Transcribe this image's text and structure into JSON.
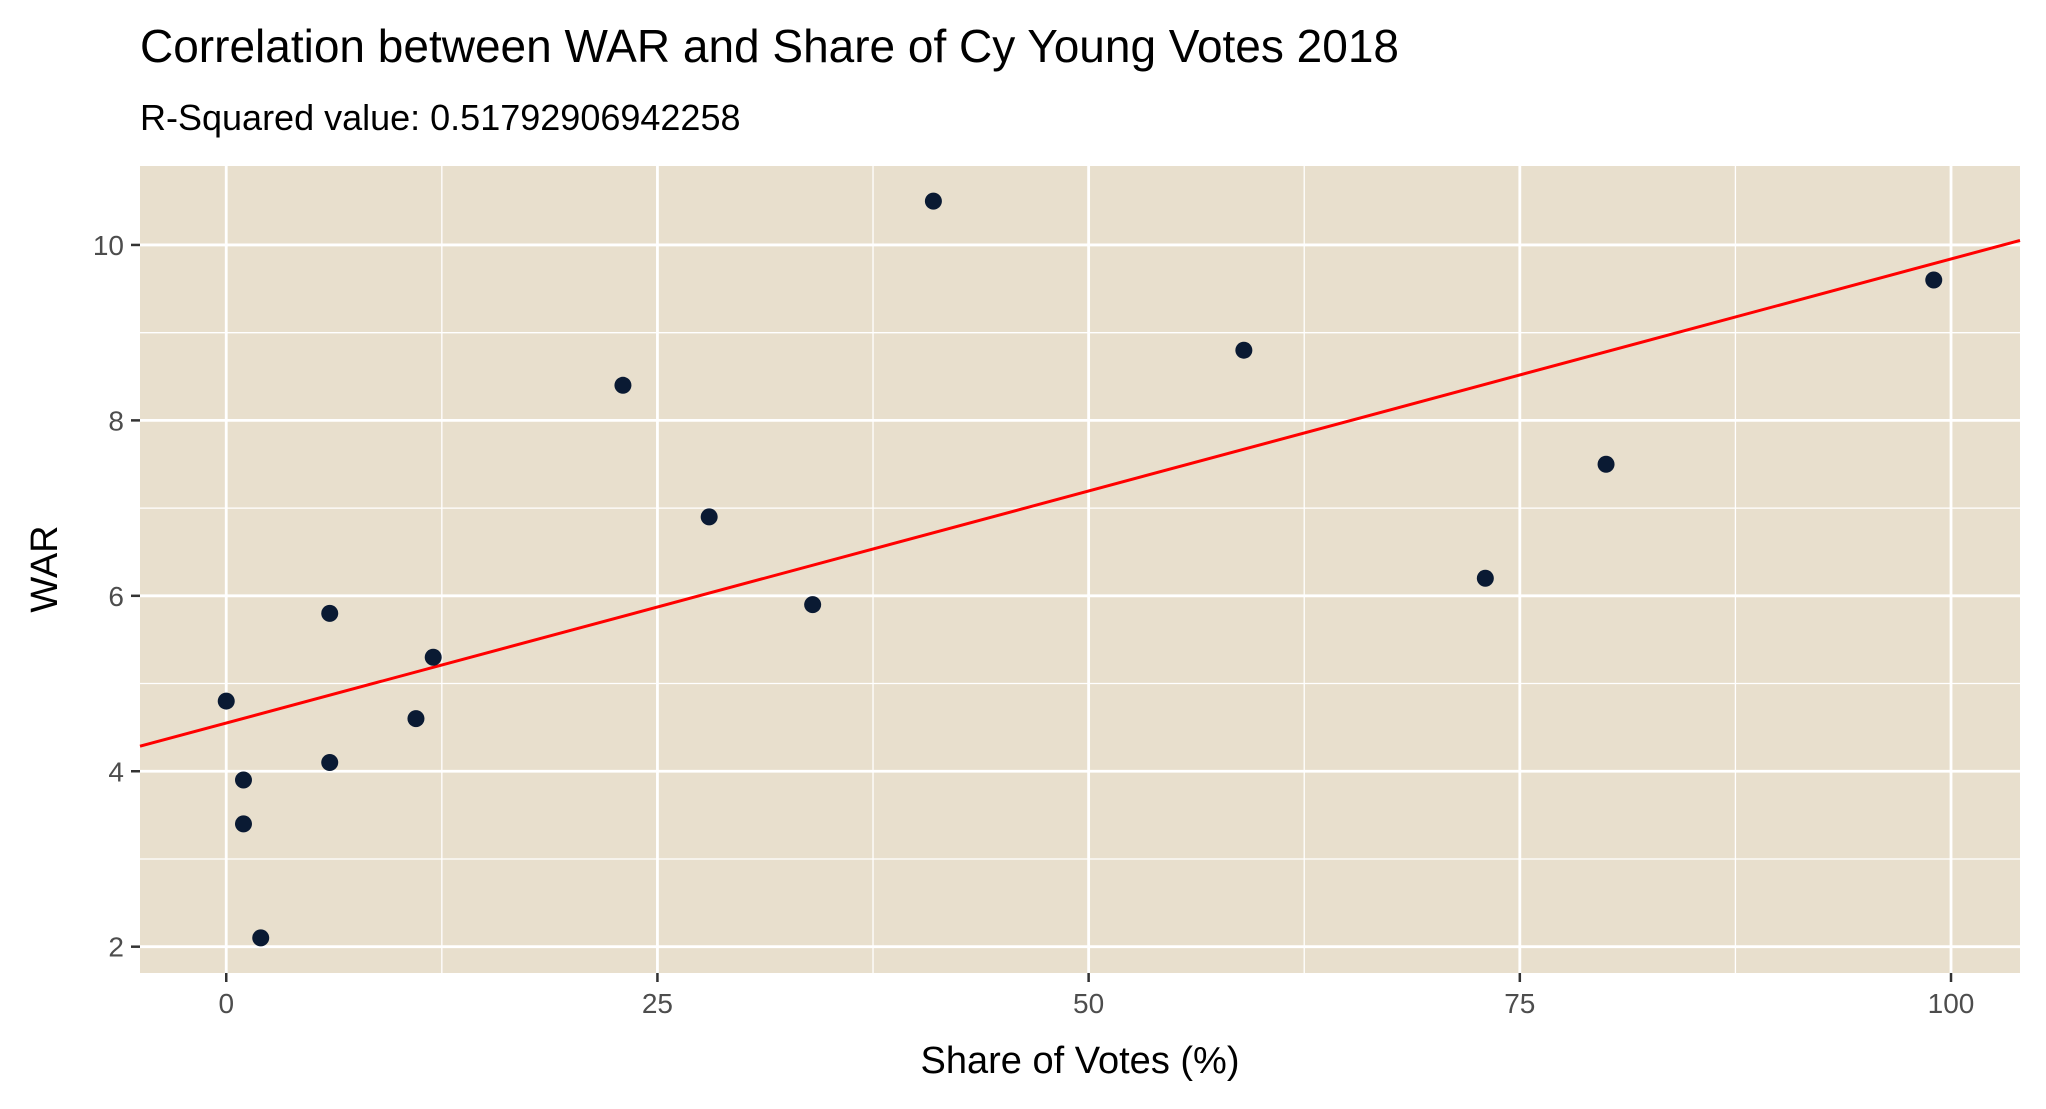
{
  "chart_data": {
    "type": "scatter",
    "title": "Correlation between WAR and Share of Cy Young Votes 2018",
    "subtitle": "R-Squared value: 0.51792906942258",
    "xlabel": "Share of Votes (%)",
    "ylabel": "WAR",
    "xlim": [
      -5,
      104
    ],
    "ylim": [
      1.7,
      10.9
    ],
    "x_ticks": [
      0,
      25,
      50,
      75,
      100
    ],
    "y_ticks": [
      2,
      4,
      6,
      8,
      10
    ],
    "x_tick_labels": [
      "0",
      "25",
      "50",
      "75",
      "100"
    ],
    "y_tick_labels": [
      "2",
      "4",
      "6",
      "8",
      "10"
    ],
    "grid": true,
    "legend": "none",
    "points": [
      {
        "x": 0,
        "y": 4.8
      },
      {
        "x": 1,
        "y": 3.9
      },
      {
        "x": 1,
        "y": 3.4
      },
      {
        "x": 2,
        "y": 2.1
      },
      {
        "x": 6,
        "y": 5.8
      },
      {
        "x": 6,
        "y": 4.1
      },
      {
        "x": 11,
        "y": 4.6
      },
      {
        "x": 12,
        "y": 5.3
      },
      {
        "x": 23,
        "y": 8.4
      },
      {
        "x": 28,
        "y": 6.9
      },
      {
        "x": 34,
        "y": 5.9
      },
      {
        "x": 41,
        "y": 10.5
      },
      {
        "x": 59,
        "y": 8.8
      },
      {
        "x": 73,
        "y": 6.2
      },
      {
        "x": 80,
        "y": 7.5
      },
      {
        "x": 99,
        "y": 9.6
      }
    ],
    "trendline": {
      "intercept": 4.55,
      "slope": 0.0529
    },
    "colors": {
      "panel_background": "#e8dfcd",
      "grid": "#ffffff",
      "point": "#0a1a33",
      "trendline": "#ff0000"
    }
  }
}
